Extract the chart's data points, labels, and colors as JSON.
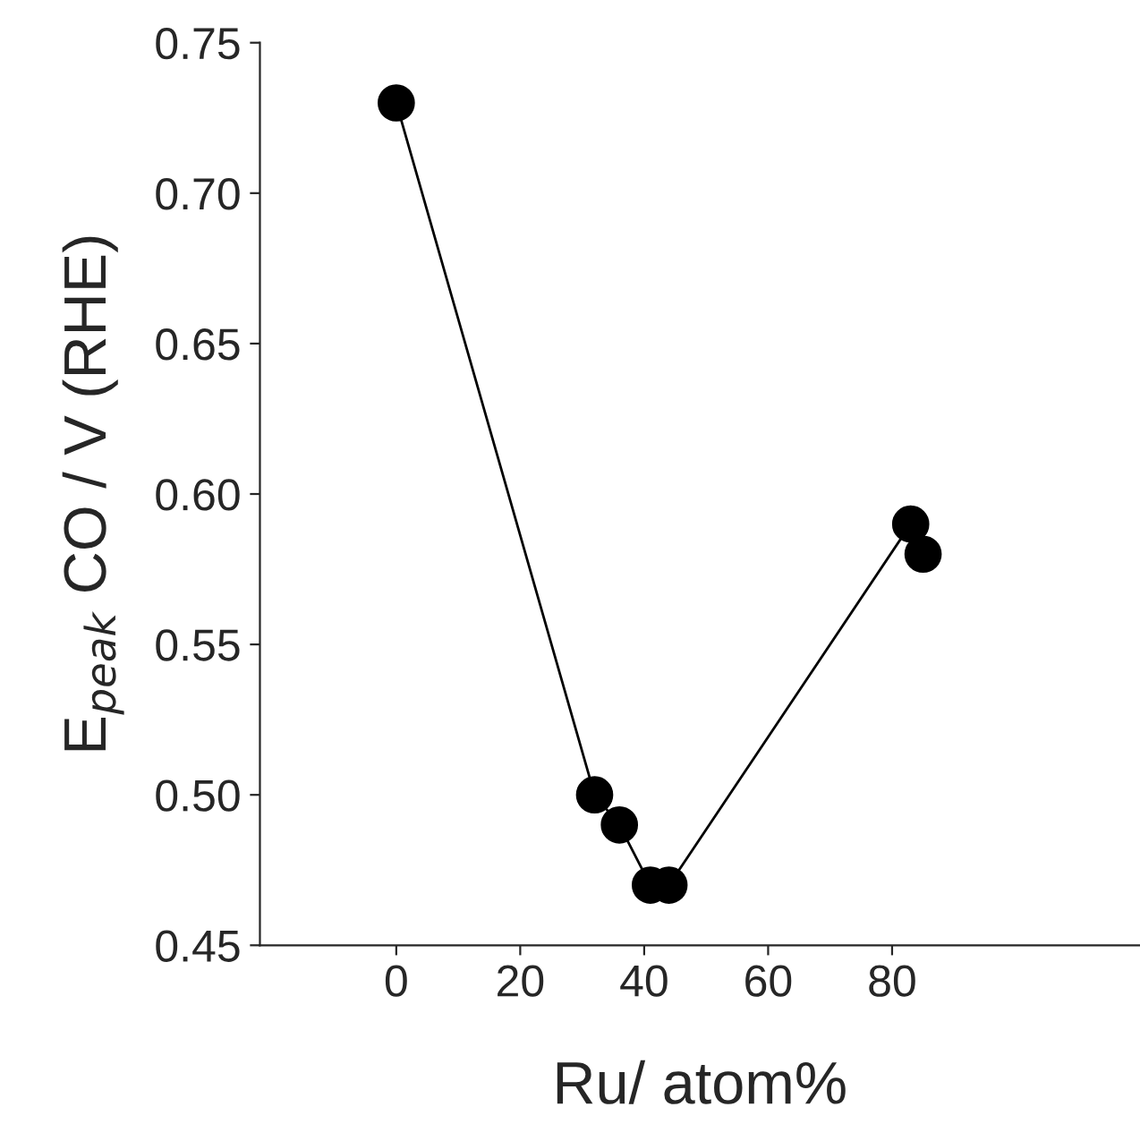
{
  "chart_data": {
    "type": "line",
    "xlabel": "Ru/ atom%",
    "ylabel": "E$_{peak}$ CO / V (RHE)",
    "x": [
      0,
      32,
      36,
      41,
      44,
      83,
      85
    ],
    "series": [
      {
        "color": "#000000",
        "values": [
          0.73,
          0.5,
          0.49,
          0.47,
          0.47,
          0.59,
          0.58
        ]
      }
    ],
    "marker": "circle",
    "xlim": [
      -22,
      120
    ],
    "xticks": [
      0,
      20,
      40,
      60,
      80
    ],
    "ylim": [
      0.45,
      0.75
    ],
    "yticks": [
      0.45,
      {
        "value": 0.5,
        "label": "0.50"
      },
      0.55,
      {
        "value": 0.6,
        "label": "0.60"
      },
      0.65,
      {
        "value": 0.7,
        "label": "0.70"
      },
      0.75
    ],
    "grid": false,
    "legend": false
  }
}
